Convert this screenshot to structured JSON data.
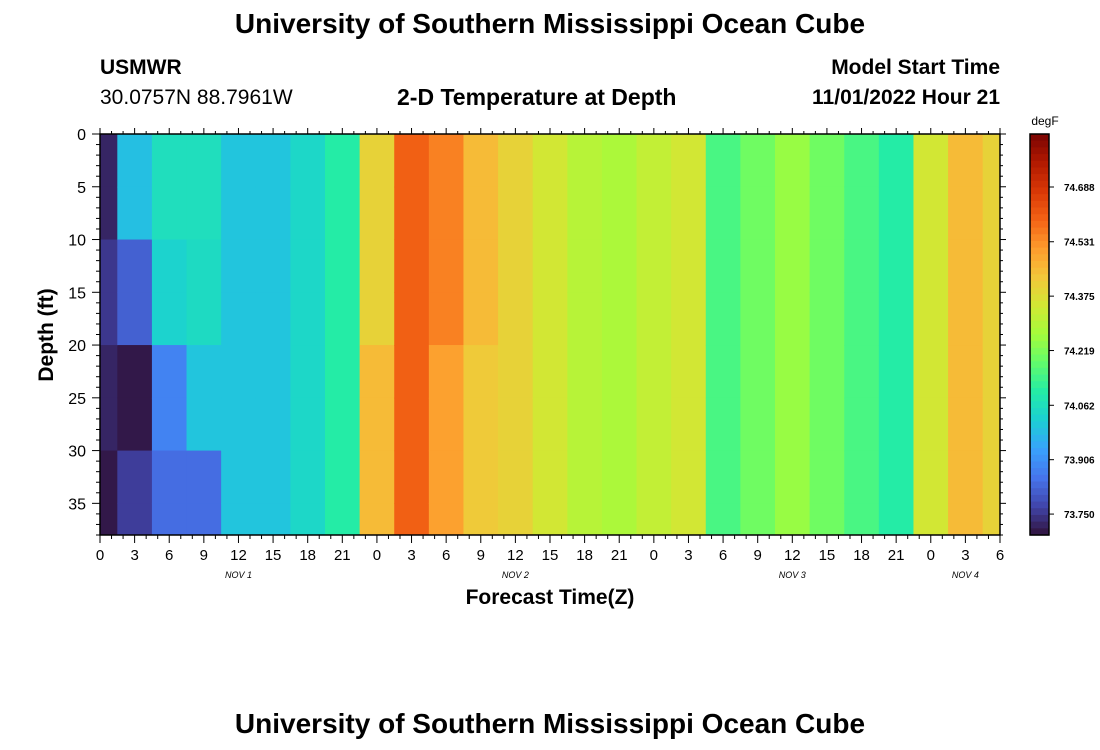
{
  "header": {
    "title": "University of Southern Mississippi Ocean Cube",
    "station_id": "USMWR",
    "station_coords": "30.0757N  88.7961W",
    "start_label": "Model Start Time",
    "start_value": "11/01/2022 Hour 21",
    "footer_title": "University of Southern Mississippi Ocean Cube"
  },
  "chart_data": {
    "type": "heatmap",
    "title": "University of Southern Mississippi Ocean Cube",
    "subtitle": "2-D Temperature at Depth",
    "xlabel": "Forecast Time(Z)",
    "ylabel": "Depth (ft)",
    "colorbar_label": "degF",
    "x_tick_labels": [
      "0",
      "3",
      "6",
      "9",
      "12",
      "15",
      "18",
      "21",
      "0",
      "3",
      "6",
      "9",
      "12",
      "15",
      "18",
      "21",
      "0",
      "3",
      "6",
      "9",
      "12",
      "15",
      "18",
      "21",
      "0",
      "3",
      "6"
    ],
    "x_range_hours": [
      0,
      78
    ],
    "day_labels": [
      {
        "label": "NOV 1",
        "hour": 12
      },
      {
        "label": "NOV 2",
        "hour": 36
      },
      {
        "label": "NOV 3",
        "hour": 60
      },
      {
        "label": "NOV 4",
        "hour": 75
      }
    ],
    "y_ticks": [
      0,
      5,
      10,
      15,
      20,
      25,
      30,
      35
    ],
    "y_range": [
      0,
      38
    ],
    "y_inverted": true,
    "colorbar_ticks": [
      "74.688",
      "74.531",
      "74.375",
      "74.219",
      "74.062",
      "73.906",
      "73.750"
    ],
    "colorbar_range": [
      73.69,
      74.84
    ],
    "colormap": [
      "#30123b",
      "#4145ab",
      "#4675ed",
      "#39a2fc",
      "#1bcfd4",
      "#24eca6",
      "#61fc6c",
      "#a4fc3b",
      "#d1e834",
      "#f3c63a",
      "#fe9b2d",
      "#f36315",
      "#d93806",
      "#b11901",
      "#7a0402"
    ],
    "hours": [
      0,
      3,
      6,
      9,
      12,
      15,
      18,
      21,
      24,
      27,
      30,
      33,
      36,
      39,
      42,
      45,
      48,
      51,
      54,
      57,
      60,
      63,
      66,
      69,
      72,
      75,
      78
    ],
    "depths": [
      0,
      5,
      10,
      15,
      20,
      25,
      30,
      35,
      38
    ],
    "values": [
      [
        73.72,
        73.75,
        73.72,
        73.7
      ],
      [
        73.99,
        73.82,
        73.7,
        73.76
      ],
      [
        74.06,
        74.03,
        73.88,
        73.84
      ],
      [
        74.06,
        74.05,
        74.0,
        73.84
      ],
      [
        74.0,
        74.0,
        74.0,
        74.0
      ],
      [
        74.0,
        74.0,
        74.0,
        74.0
      ],
      [
        74.04,
        74.04,
        74.04,
        74.04
      ],
      [
        74.1,
        74.1,
        74.1,
        74.1
      ],
      [
        74.4,
        74.4,
        74.45,
        74.45
      ],
      [
        74.6,
        74.6,
        74.6,
        74.6
      ],
      [
        74.55,
        74.55,
        74.5,
        74.5
      ],
      [
        74.45,
        74.45,
        74.42,
        74.42
      ],
      [
        74.4,
        74.4,
        74.4,
        74.4
      ],
      [
        74.35,
        74.35,
        74.35,
        74.35
      ],
      [
        74.3,
        74.3,
        74.3,
        74.3
      ],
      [
        74.28,
        74.28,
        74.28,
        74.28
      ],
      [
        74.32,
        74.32,
        74.32,
        74.32
      ],
      [
        74.35,
        74.35,
        74.35,
        74.35
      ],
      [
        74.15,
        74.15,
        74.15,
        74.15
      ],
      [
        74.2,
        74.2,
        74.2,
        74.2
      ],
      [
        74.25,
        74.25,
        74.25,
        74.25
      ],
      [
        74.2,
        74.2,
        74.2,
        74.2
      ],
      [
        74.15,
        74.15,
        74.15,
        74.15
      ],
      [
        74.1,
        74.1,
        74.1,
        74.1
      ],
      [
        74.35,
        74.35,
        74.35,
        74.35
      ],
      [
        74.45,
        74.45,
        74.45,
        74.45
      ],
      [
        74.4,
        74.4,
        74.4,
        74.4
      ]
    ]
  }
}
